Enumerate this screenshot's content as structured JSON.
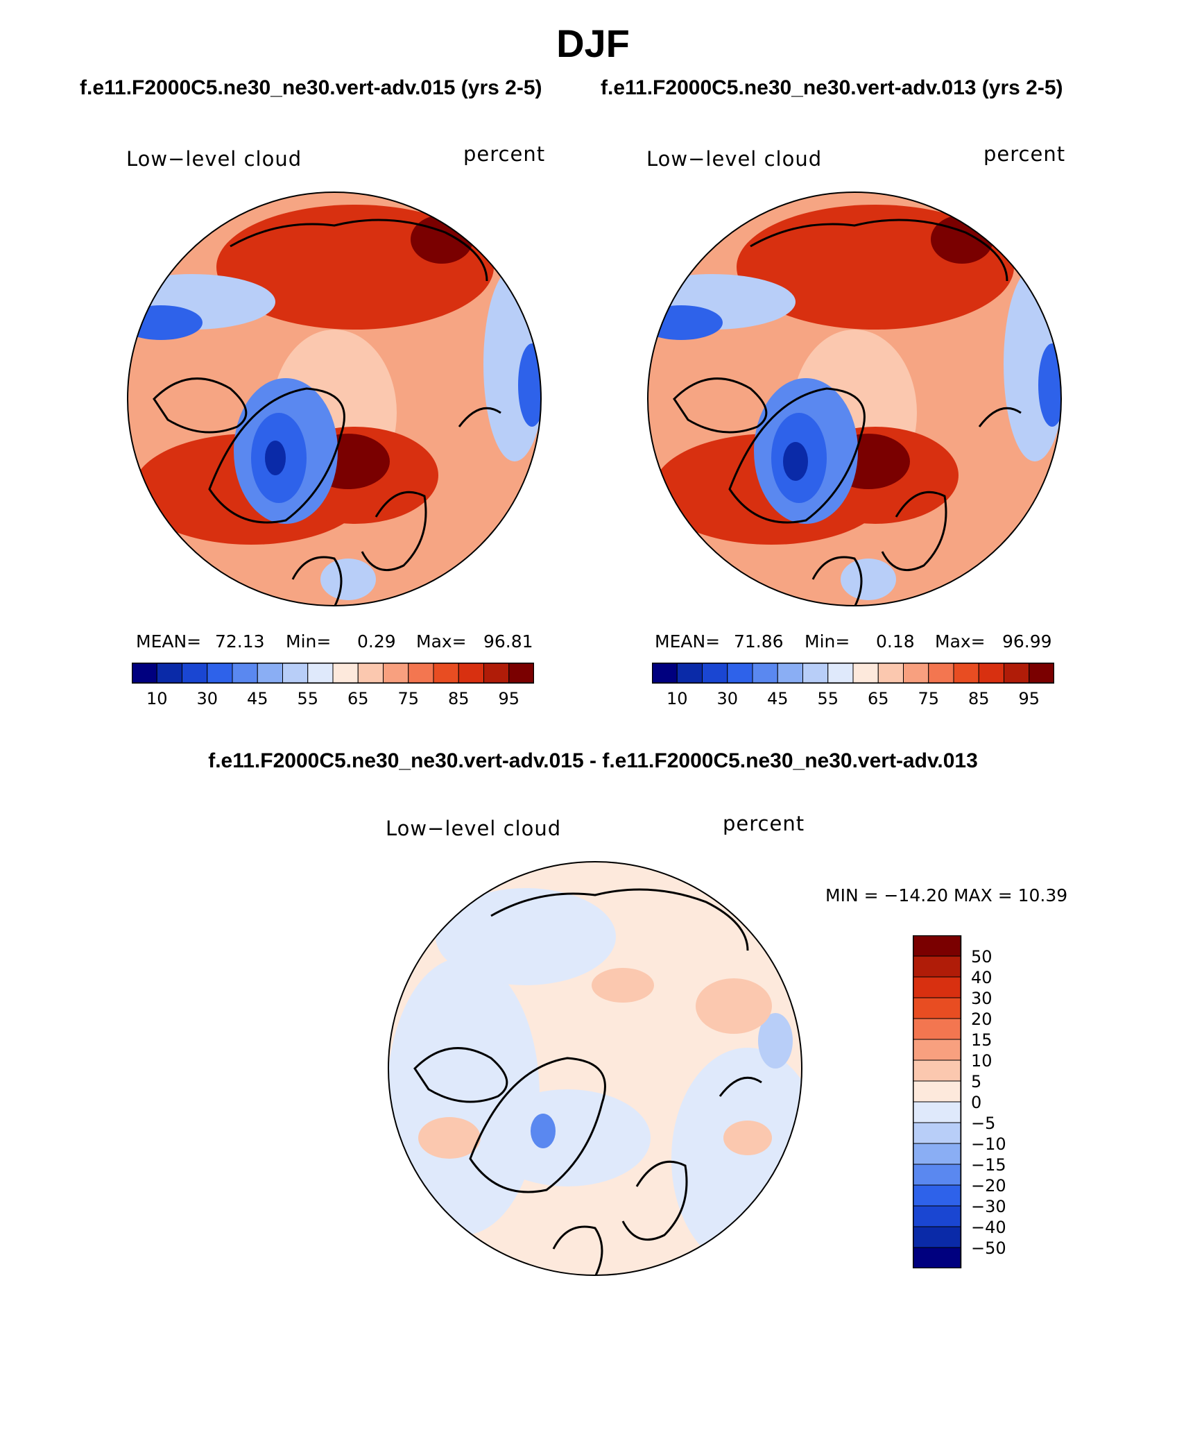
{
  "figure": {
    "title": "DJF",
    "case1_label": "f.e11.F2000C5.ne30_ne30.vert-adv.015 (yrs 2-5)",
    "case2_label": "f.e11.F2000C5.ne30_ne30.vert-adv.013 (yrs 2-5)",
    "diff_title": "f.e11.F2000C5.ne30_ne30.vert-adv.015 - f.e11.F2000C5.ne30_ne30.vert-adv.013"
  },
  "panels": [
    {
      "variable": "Low−level cloud",
      "units": "percent",
      "mean_label": "MEAN=",
      "mean_value": "72.13",
      "min_label": "Min=",
      "min_value": "0.29",
      "max_label": "Max=",
      "max_value": "96.81"
    },
    {
      "variable": "Low−level cloud",
      "units": "percent",
      "mean_label": "MEAN=",
      "mean_value": "71.86",
      "min_label": "Min=",
      "min_value": "0.18",
      "max_label": "Max=",
      "max_value": "96.99"
    },
    {
      "variable": "Low−level cloud",
      "units": "percent",
      "minmax_text": "MIN = −14.20 MAX =   10.39"
    }
  ],
  "colorbar_horizontal": {
    "colors": [
      "#00007f",
      "#0a2aa8",
      "#1a46d2",
      "#2e62ea",
      "#5a88f0",
      "#8aaef4",
      "#b8cef8",
      "#dfe9fb",
      "#fde9dc",
      "#fbc8af",
      "#f8a07f",
      "#f37650",
      "#e84d22",
      "#d83010",
      "#b01c08",
      "#7a0000"
    ],
    "tick_labels": [
      "10",
      "30",
      "45",
      "55",
      "65",
      "75",
      "85",
      "95"
    ]
  },
  "colorbar_vertical": {
    "colors": [
      "#00007f",
      "#0a2aa8",
      "#1a46d2",
      "#2e62ea",
      "#5a88f0",
      "#8aaef4",
      "#b8cef8",
      "#dfe9fb",
      "#fde9dc",
      "#fbc8af",
      "#f8a07f",
      "#f37650",
      "#e84d22",
      "#d83010",
      "#b01c08",
      "#7a0000"
    ],
    "tick_labels": [
      "50",
      "40",
      "30",
      "20",
      "15",
      "10",
      "5",
      "0",
      "−5",
      "−10",
      "−15",
      "−20",
      "−30",
      "−40",
      "−50"
    ]
  },
  "map_colors": {
    "base_abs": "#f6a583",
    "base_diff": "#fde9dc",
    "dark_red": "#7a0000",
    "red": "#d83010",
    "orange": "#f37650",
    "light_orange": "#fbc8af",
    "pale": "#fde9dc",
    "light_blue": "#b8cef8",
    "pale_blue": "#dfe9fb",
    "blue": "#2e62ea",
    "mid_blue": "#5a88f0",
    "deep_blue": "#0a2aa8"
  }
}
